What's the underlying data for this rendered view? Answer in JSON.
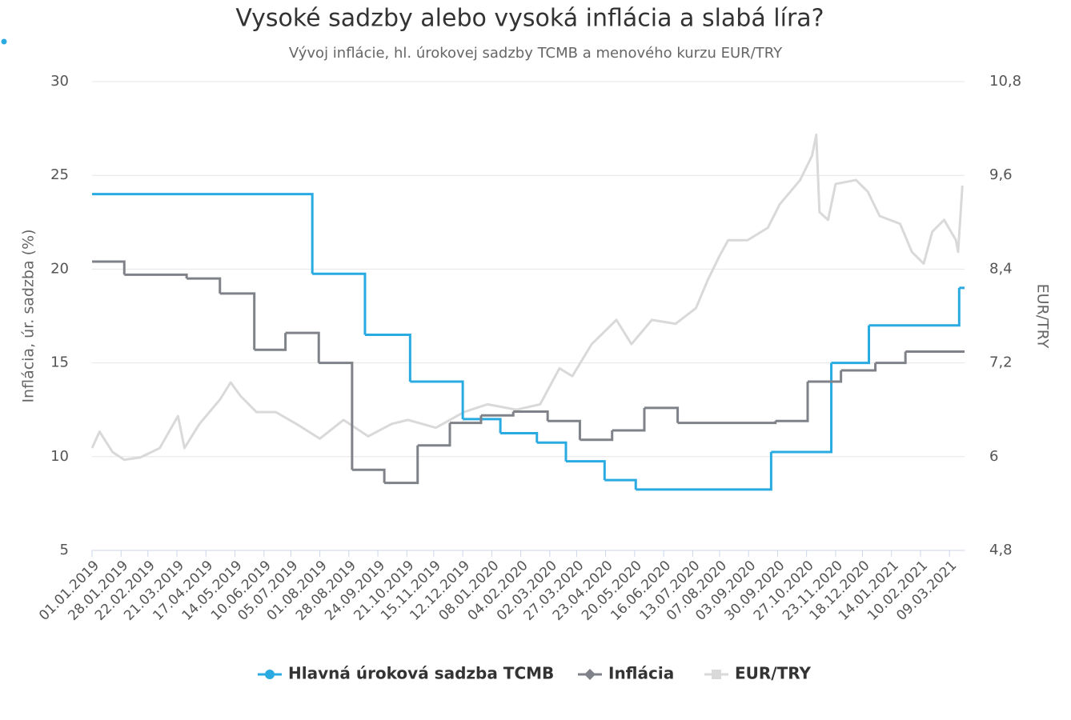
{
  "chart_data": {
    "type": "line",
    "title": "Vysoké sadzby alebo vysoká inflácia a slabá líra?",
    "subtitle": "Vývoj inflácie, hl. úrokovej sadzby TCMB a menového kurzu EUR/TRY",
    "y_label": "Inflácia, úr. sadzba (%)",
    "y2_label": "EUR/TRY",
    "xlim": [
      "01.01.2019",
      "23.03.2021"
    ],
    "xticks": [
      "01.01.2019",
      "28.01.2019",
      "22.02.2019",
      "21.03.2019",
      "17.04.2019",
      "14.05.2019",
      "10.06.2019",
      "05.07.2019",
      "01.08.2019",
      "28.08.2019",
      "24.09.2019",
      "21.10.2019",
      "15.11.2019",
      "12.12.2019",
      "08.01.2020",
      "04.02.2020",
      "02.03.2020",
      "27.03.2020",
      "23.04.2020",
      "20.05.2020",
      "16.06.2020",
      "13.07.2020",
      "07.08.2020",
      "03.09.2020",
      "30.09.2020",
      "27.10.2020",
      "23.11.2020",
      "18.12.2020",
      "14.01.2021",
      "10.02.2021",
      "09.03.2021"
    ],
    "ylim": [
      5,
      30
    ],
    "yticks": [
      5,
      10,
      15,
      20,
      25,
      30
    ],
    "y2lim": [
      4.8,
      10.8
    ],
    "y2ticks": [
      {
        "value": 4.8,
        "label": "4,8"
      },
      6,
      {
        "value": 7.2,
        "label": "7,2"
      },
      {
        "value": 8.4,
        "label": "8,4"
      },
      {
        "value": 9.6,
        "label": "9,6"
      },
      {
        "value": 10.8,
        "label": "10,8"
      }
    ],
    "grid": true,
    "legend": "bottom",
    "series": [
      {
        "name": "Hlavná úroková sadzba TCMB",
        "color": "#29abe2",
        "step": true,
        "marker": "circle",
        "x": [
          "01.01.2019",
          "25.07.2019",
          "12.09.2019",
          "24.10.2019",
          "12.12.2019",
          "16.01.2020",
          "19.02.2020",
          "17.03.2020",
          "22.04.2020",
          "21.05.2020",
          "24.09.2020",
          "19.11.2020",
          "24.12.2020",
          "18.03.2021",
          "23.03.2021"
        ],
        "values": [
          24,
          19.75,
          16.5,
          14,
          12,
          11.25,
          10.75,
          9.75,
          8.75,
          8.25,
          10.25,
          15,
          17,
          19,
          19
        ]
      },
      {
        "name": "Inflácia",
        "color": "#7f8289",
        "step": true,
        "marker": "diamond",
        "x": [
          "01.01.2019",
          "31.01.2019",
          "30.03.2019",
          "30.04.2019",
          "01.06.2019",
          "30.06.2019",
          "31.07.2019",
          "31.08.2019",
          "30.09.2019",
          "31.10.2019",
          "30.11.2019",
          "29.12.2019",
          "28.01.2020",
          "29.02.2020",
          "30.03.2020",
          "29.04.2020",
          "29.05.2020",
          "29.06.2020",
          "28.09.2020",
          "28.10.2020",
          "28.11.2020",
          "30.12.2020",
          "27.01.2021",
          "23.03.2021"
        ],
        "values": [
          20.4,
          19.7,
          19.5,
          18.7,
          15.7,
          16.6,
          15.0,
          9.3,
          8.6,
          10.6,
          11.8,
          12.2,
          12.4,
          11.9,
          10.9,
          11.4,
          12.6,
          11.8,
          11.9,
          14.0,
          14.6,
          15.0,
          15.6,
          15.6
        ]
      },
      {
        "name": "EUR/TRY",
        "color": "#d9d9d9",
        "axis": "y2",
        "marker": "square",
        "x": [
          "01.01.2019",
          "08.01.2019",
          "20.01.2019",
          "31.01.2019",
          "15.02.2019",
          "05.03.2019",
          "22.03.2019",
          "28.03.2019",
          "11.04.2019",
          "30.04.2019",
          "10.05.2019",
          "19.05.2019",
          "03.06.2019",
          "21.06.2019",
          "10.07.2019",
          "01.08.2019",
          "23.08.2019",
          "15.09.2019",
          "07.10.2019",
          "22.10.2019",
          "17.11.2019",
          "13.12.2019",
          "04.01.2020",
          "31.01.2020",
          "22.02.2020",
          "11.03.2020",
          "23.03.2020",
          "10.04.2020",
          "03.05.2020",
          "17.05.2020",
          "05.06.2020",
          "27.06.2020",
          "16.07.2020",
          "27.07.2020",
          "07.08.2020",
          "15.08.2020",
          "02.09.2020",
          "21.09.2020",
          "02.10.2020",
          "21.10.2020",
          "01.11.2020",
          "05.11.2020",
          "08.11.2020",
          "16.11.2020",
          "23.11.2020",
          "12.12.2020",
          "23.12.2020",
          "03.01.2021",
          "22.01.2021",
          "02.02.2021",
          "13.02.2021",
          "21.02.2021",
          "04.03.2021",
          "15.03.2021",
          "17.03.2021",
          "21.03.2021"
        ],
        "values": [
          6.11,
          6.32,
          6.06,
          5.96,
          5.99,
          6.11,
          6.52,
          6.11,
          6.42,
          6.73,
          6.95,
          6.78,
          6.57,
          6.57,
          6.42,
          6.23,
          6.47,
          6.26,
          6.42,
          6.47,
          6.37,
          6.57,
          6.67,
          6.6,
          6.67,
          7.13,
          7.03,
          7.44,
          7.75,
          7.44,
          7.75,
          7.7,
          7.9,
          8.26,
          8.57,
          8.77,
          8.77,
          8.93,
          9.23,
          9.54,
          9.85,
          10.12,
          9.13,
          9.03,
          9.49,
          9.54,
          9.39,
          9.08,
          8.98,
          8.62,
          8.47,
          8.88,
          9.03,
          8.77,
          8.62,
          9.47
        ]
      }
    ]
  }
}
